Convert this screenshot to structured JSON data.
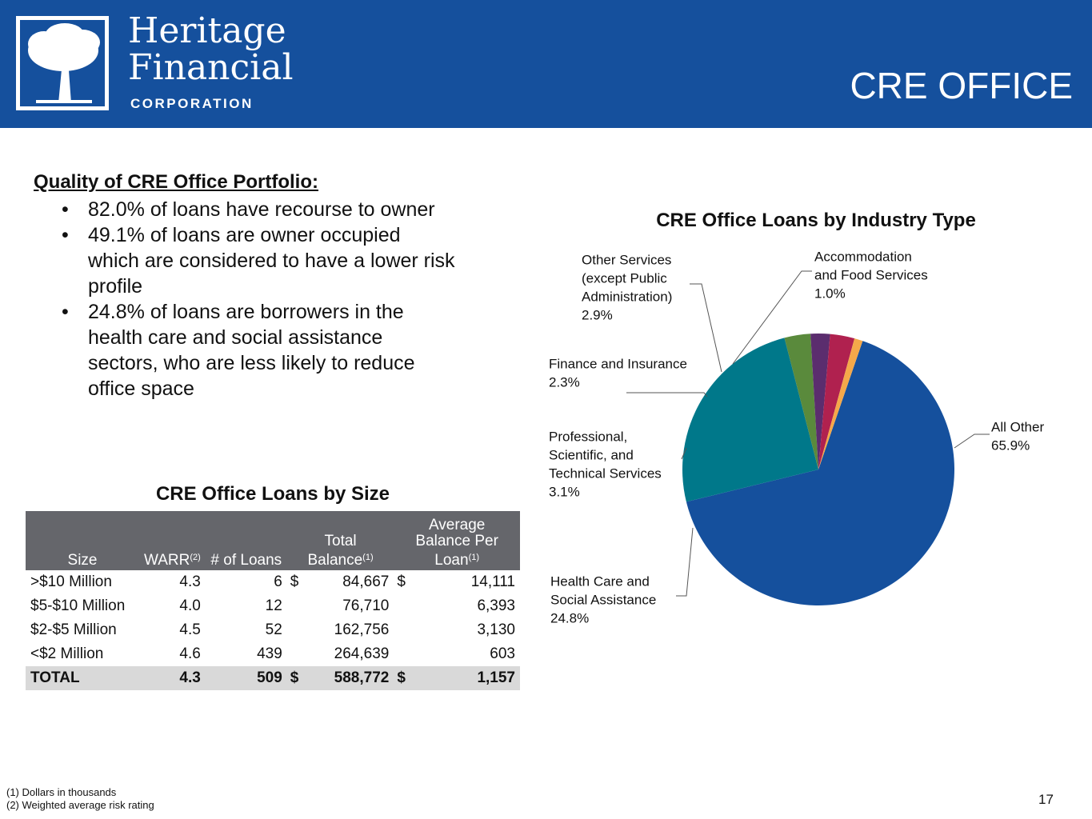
{
  "header": {
    "brand_line1": "Heritage",
    "brand_line2": "Financial",
    "brand_sub": "CORPORATION",
    "page_title": "CRE OFFICE",
    "logo_icon": "tree-icon",
    "color": "#15509d"
  },
  "quality": {
    "heading": "Quality of CRE Office Portfolio:",
    "bullets": [
      "82.0% of loans have recourse to owner",
      "49.1% of loans are owner occupied which are considered to have a lower risk profile",
      "24.8% of loans are borrowers in the health care and social assistance sectors, who are less likely to reduce office space"
    ]
  },
  "size_table": {
    "title": "CRE Office Loans by Size",
    "headers": {
      "size": "Size",
      "warr": "WARR",
      "warr_note": "(2)",
      "loans": "# of Loans",
      "total_line1": "Total",
      "total_line2": "Balance",
      "total_note": "(1)",
      "avg_line1": "Average",
      "avg_line2": "Balance Per",
      "avg_line3": "Loan",
      "avg_note": "(1)"
    },
    "rows": [
      {
        "size": ">$10 Million",
        "warr": "4.3",
        "loans": "6",
        "cur1": "$",
        "total": "84,667",
        "cur2": "$",
        "avg": "14,111"
      },
      {
        "size": "$5-$10 Million",
        "warr": "4.0",
        "loans": "12",
        "cur1": "",
        "total": "76,710",
        "cur2": "",
        "avg": "6,393"
      },
      {
        "size": "$2-$5 Million",
        "warr": "4.5",
        "loans": "52",
        "cur1": "",
        "total": "162,756",
        "cur2": "",
        "avg": "3,130"
      },
      {
        "size": "<$2 Million",
        "warr": "4.6",
        "loans": "439",
        "cur1": "",
        "total": "264,639",
        "cur2": "",
        "avg": "603"
      }
    ],
    "total_row": {
      "size": "TOTAL",
      "warr": "4.3",
      "loans": "509",
      "cur1": "$",
      "total": "588,772",
      "cur2": "$",
      "avg": "1,157"
    }
  },
  "chart_data": {
    "type": "pie",
    "title": "CRE Office Loans by Industry Type",
    "slices": [
      {
        "label": "All Other",
        "pct_label": "65.9%",
        "value": 65.9,
        "color": "#15509d"
      },
      {
        "label": "Health Care and Social Assistance",
        "pct_label": "24.8%",
        "value": 24.8,
        "color": "#00788a"
      },
      {
        "label": "Professional, Scientific, and Technical Services",
        "pct_label": "3.1%",
        "value": 3.1,
        "color": "#5a8a3c"
      },
      {
        "label": "Finance and Insurance",
        "pct_label": "2.3%",
        "value": 2.3,
        "color": "#5b2d6e"
      },
      {
        "label": "Other Services (except Public Administration)",
        "pct_label": "2.9%",
        "value": 2.9,
        "color": "#b0214f"
      },
      {
        "label": "Accommodation and Food Services",
        "pct_label": "1.0%",
        "value": 1.0,
        "color": "#f4a84a"
      }
    ],
    "label_lines": {
      "all_other": [
        "All Other",
        "65.9%"
      ],
      "health": [
        "Health Care and",
        "Social Assistance",
        "24.8%"
      ],
      "professional": [
        "Professional,",
        "Scientific, and",
        "Technical Services",
        "3.1%"
      ],
      "finance": [
        "Finance and Insurance",
        "2.3%"
      ],
      "other_services": [
        "Other Services",
        "(except Public",
        "Administration)",
        "2.9%"
      ],
      "accommodation": [
        "Accommodation",
        "and Food Services",
        "1.0%"
      ]
    }
  },
  "footnotes": [
    "(1) Dollars in thousands",
    "(2) Weighted average risk rating"
  ],
  "page_number": "17"
}
